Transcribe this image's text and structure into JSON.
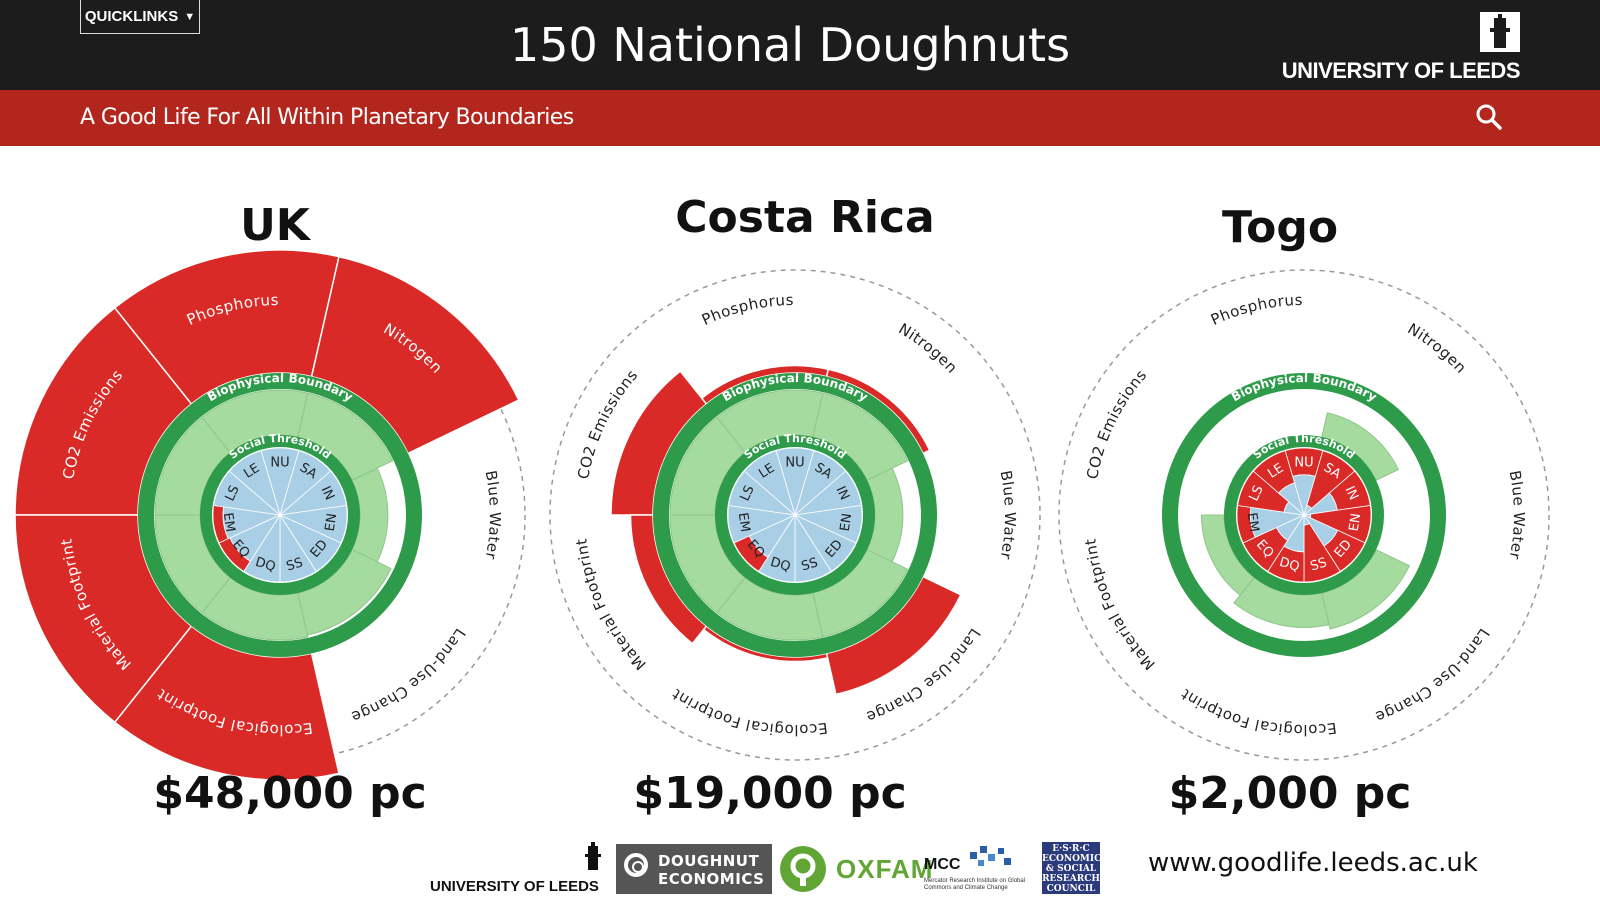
{
  "header": {
    "quicklinks_label": "QUICKLINKS",
    "title": "150 National Doughnuts",
    "university": "UNIVERSITY OF LEEDS",
    "tagline": "A Good Life For All Within Planetary Boundaries",
    "search_icon": "search-icon"
  },
  "ring_labels": {
    "biophysical": "Biophysical Boundary",
    "social": "Social Threshold"
  },
  "colors": {
    "overshoot_red": "#da2a27",
    "within_green": "#a6dba0",
    "boundary_green": "#2e9b4a",
    "social_blue": "#a9cfe6",
    "dark_bar": "#1c1c1c",
    "red_bar": "#b3261e"
  },
  "chart_data": [
    {
      "type": "radial",
      "country": "UK",
      "income": "$48,000 pc",
      "biophysical": [
        {
          "label": "CO2 Emissions",
          "value": 1.82,
          "exceeds": true
        },
        {
          "label": "Phosphorus",
          "value": 1.82,
          "exceeds": true
        },
        {
          "label": "Nitrogen",
          "value": 1.82,
          "exceeds": true
        },
        {
          "label": "Blue Water",
          "value": 0.62,
          "exceeds": false
        },
        {
          "label": "Land-Use Change",
          "value": 0.96,
          "exceeds": false
        },
        {
          "label": "Ecological Footprint",
          "value": 1.82,
          "exceeds": true
        },
        {
          "label": "Material Footprint",
          "value": 1.82,
          "exceeds": true
        }
      ],
      "social": [
        {
          "label": "NU",
          "value": 1.0,
          "short": false
        },
        {
          "label": "SA",
          "value": 1.0,
          "short": false
        },
        {
          "label": "IN",
          "value": 1.0,
          "short": false
        },
        {
          "label": "EN",
          "value": 1.0,
          "short": false
        },
        {
          "label": "ED",
          "value": 1.0,
          "short": false
        },
        {
          "label": "SS",
          "value": 1.0,
          "short": false
        },
        {
          "label": "DQ",
          "value": 1.0,
          "short": false
        },
        {
          "label": "EQ",
          "value": 0.82,
          "short": true
        },
        {
          "label": "EM",
          "value": 0.85,
          "short": true
        },
        {
          "label": "LS",
          "value": 1.0,
          "short": false
        },
        {
          "label": "LE",
          "value": 1.0,
          "short": false
        }
      ]
    },
    {
      "type": "radial",
      "country": "Costa Rica",
      "income": "$19,000 pc",
      "biophysical": [
        {
          "label": "CO2 Emissions",
          "value": 1.28,
          "exceeds": true
        },
        {
          "label": "Phosphorus",
          "value": 1.05,
          "exceeds": true
        },
        {
          "label": "Nitrogen",
          "value": 1.05,
          "exceeds": true
        },
        {
          "label": "Blue Water",
          "value": 0.62,
          "exceeds": false
        },
        {
          "label": "Land-Use Change",
          "value": 1.28,
          "exceeds": true
        },
        {
          "label": "Ecological Footprint",
          "value": 1.03,
          "exceeds": true
        },
        {
          "label": "Material Footprint",
          "value": 1.15,
          "exceeds": true
        }
      ],
      "social": [
        {
          "label": "NU",
          "value": 1.0,
          "short": false
        },
        {
          "label": "SA",
          "value": 1.0,
          "short": false
        },
        {
          "label": "IN",
          "value": 1.0,
          "short": false
        },
        {
          "label": "EN",
          "value": 1.0,
          "short": false
        },
        {
          "label": "ED",
          "value": 1.0,
          "short": false
        },
        {
          "label": "SS",
          "value": 1.0,
          "short": false
        },
        {
          "label": "DQ",
          "value": 1.0,
          "short": false
        },
        {
          "label": "EQ",
          "value": 0.75,
          "short": true
        },
        {
          "label": "EM",
          "value": 1.0,
          "short": false
        },
        {
          "label": "LS",
          "value": 1.0,
          "short": false
        },
        {
          "label": "LE",
          "value": 1.0,
          "short": false
        }
      ]
    },
    {
      "type": "radial",
      "country": "Togo",
      "income": "$2,000 pc",
      "biophysical": [
        {
          "label": "CO2 Emissions",
          "value": 0.0,
          "exceeds": false
        },
        {
          "label": "Phosphorus",
          "value": 0.0,
          "exceeds": false
        },
        {
          "label": "Nitrogen",
          "value": 0.55,
          "exceeds": false
        },
        {
          "label": "Blue Water",
          "value": 0.0,
          "exceeds": false
        },
        {
          "label": "Land-Use Change",
          "value": 0.82,
          "exceeds": false
        },
        {
          "label": "Ecological Footprint",
          "value": 0.72,
          "exceeds": false
        },
        {
          "label": "Material Footprint",
          "value": 0.5,
          "exceeds": false
        }
      ],
      "social": [
        {
          "label": "NU",
          "value": 0.6,
          "short": true
        },
        {
          "label": "SA",
          "value": 0.15,
          "short": true
        },
        {
          "label": "IN",
          "value": 0.5,
          "short": true
        },
        {
          "label": "EN",
          "value": 0.1,
          "short": true
        },
        {
          "label": "ED",
          "value": 0.55,
          "short": true
        },
        {
          "label": "SS",
          "value": 0.15,
          "short": true
        },
        {
          "label": "DQ",
          "value": 0.55,
          "short": true
        },
        {
          "label": "EQ",
          "value": 0.45,
          "short": true
        },
        {
          "label": "EM",
          "value": 0.8,
          "short": true
        },
        {
          "label": "LS",
          "value": 0.3,
          "short": true
        },
        {
          "label": "LE",
          "value": 0.5,
          "short": true
        }
      ]
    }
  ],
  "footer": {
    "website": "www.goodlife.leeds.ac.uk",
    "logo_leeds": "UNIVERSITY OF LEEDS",
    "logo_doughnut_1": "DOUGHNUT",
    "logo_doughnut_2": "ECONOMICS",
    "logo_oxfam": "OXFAM",
    "logo_mcc": "MCC",
    "logo_mcc_sub": "Mercator Research Institute on Global Commons and Climate Change",
    "logo_esrc": "E·S·R·C ECONOMIC & SOCIAL RESEARCH COUNCIL"
  }
}
